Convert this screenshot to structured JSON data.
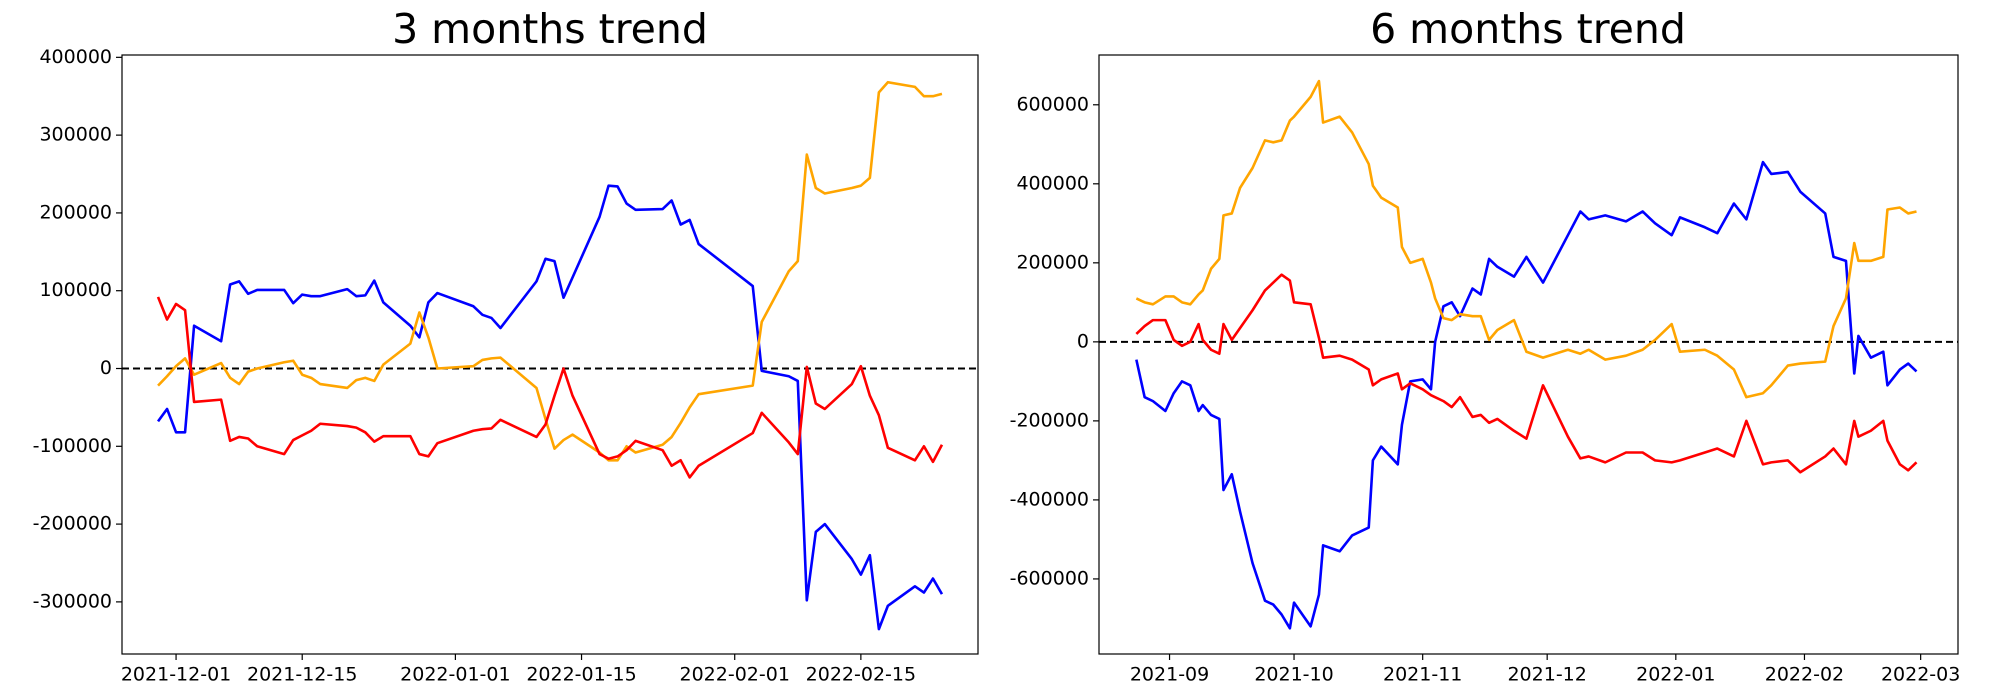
{
  "chart_data": [
    {
      "type": "line",
      "title": "3 months trend",
      "x": [
        "2021-11-29",
        "2021-11-30",
        "2021-12-01",
        "2021-12-02",
        "2021-12-03",
        "2021-12-06",
        "2021-12-07",
        "2021-12-08",
        "2021-12-09",
        "2021-12-10",
        "2021-12-13",
        "2021-12-14",
        "2021-12-15",
        "2021-12-16",
        "2021-12-17",
        "2021-12-20",
        "2021-12-21",
        "2021-12-22",
        "2021-12-23",
        "2021-12-24",
        "2021-12-27",
        "2021-12-28",
        "2021-12-29",
        "2021-12-30",
        "2022-01-03",
        "2022-01-04",
        "2022-01-05",
        "2022-01-06",
        "2022-01-10",
        "2022-01-11",
        "2022-01-12",
        "2022-01-13",
        "2022-01-14",
        "2022-01-17",
        "2022-01-18",
        "2022-01-19",
        "2022-01-20",
        "2022-01-21",
        "2022-01-24",
        "2022-01-25",
        "2022-01-26",
        "2022-01-27",
        "2022-01-28",
        "2022-02-03",
        "2022-02-04",
        "2022-02-07",
        "2022-02-08",
        "2022-02-09",
        "2022-02-10",
        "2022-02-11",
        "2022-02-14",
        "2022-02-15",
        "2022-02-16",
        "2022-02-17",
        "2022-02-18",
        "2022-02-21",
        "2022-02-22",
        "2022-02-23",
        "2022-02-24"
      ],
      "series": [
        {
          "color": "#0000ff",
          "values": [
            -68000,
            -52000,
            -82000,
            -82000,
            55000,
            35000,
            108000,
            112000,
            96000,
            101000,
            101000,
            84000,
            95000,
            93000,
            93000,
            102000,
            93000,
            94000,
            113000,
            85000,
            55000,
            40000,
            85000,
            97000,
            80000,
            69000,
            65000,
            52000,
            112000,
            141000,
            138000,
            91000,
            117000,
            195000,
            235000,
            234000,
            212000,
            204000,
            205000,
            216000,
            185000,
            191000,
            160000,
            106000,
            -3000,
            -10000,
            -16000,
            -298000,
            -210000,
            -200000,
            -245000,
            -265000,
            -240000,
            -335000,
            -305000,
            -280000,
            -288000,
            -270000,
            -290000
          ]
        },
        {
          "color": "#ffa500",
          "values": [
            -22000,
            -10000,
            3000,
            13000,
            -8000,
            7000,
            -12000,
            -20000,
            -4000,
            0,
            8000,
            10000,
            -8000,
            -12000,
            -20000,
            -25000,
            -15000,
            -12000,
            -16000,
            5000,
            32000,
            72000,
            40000,
            0,
            3000,
            11000,
            13000,
            14000,
            -25000,
            -65000,
            -103000,
            -92000,
            -85000,
            -108000,
            -118000,
            -118000,
            -100000,
            -108000,
            -98000,
            -88000,
            -70000,
            -50000,
            -33000,
            -22000,
            60000,
            125000,
            138000,
            275000,
            232000,
            225000,
            232000,
            235000,
            245000,
            355000,
            368000,
            362000,
            350000,
            350000,
            353000
          ]
        },
        {
          "color": "#ff0000",
          "values": [
            92000,
            63000,
            83000,
            75000,
            -43000,
            -40000,
            -93000,
            -88000,
            -90000,
            -100000,
            -110000,
            -92000,
            -86000,
            -80000,
            -71000,
            -74000,
            -76000,
            -82000,
            -94000,
            -87000,
            -87000,
            -110000,
            -113000,
            -96000,
            -80000,
            -78000,
            -77000,
            -66000,
            -88000,
            -72000,
            -35000,
            0,
            -35000,
            -110000,
            -116000,
            -113000,
            -105000,
            -93000,
            -105000,
            -125000,
            -118000,
            -140000,
            -125000,
            -83000,
            -57000,
            -95000,
            -110000,
            2000,
            -45000,
            -52000,
            -20000,
            3000,
            -35000,
            -60000,
            -102000,
            -118000,
            -100000,
            -120000,
            -98000
          ]
        }
      ],
      "xlim": [
        "2021-11-25",
        "2022-02-28"
      ],
      "xticks": [
        "2021-12-01",
        "2021-12-15",
        "2022-01-01",
        "2022-01-15",
        "2022-02-01",
        "2022-02-15"
      ],
      "ylim": [
        -367000,
        403000
      ],
      "yticks": [
        -300000,
        -200000,
        -100000,
        0,
        100000,
        200000,
        300000,
        400000
      ],
      "hline": 0
    },
    {
      "type": "line",
      "title": "6 months trend",
      "x": [
        "2021-08-24",
        "2021-08-26",
        "2021-08-28",
        "2021-08-31",
        "2021-09-02",
        "2021-09-04",
        "2021-09-06",
        "2021-09-08",
        "2021-09-09",
        "2021-09-11",
        "2021-09-13",
        "2021-09-14",
        "2021-09-16",
        "2021-09-18",
        "2021-09-21",
        "2021-09-24",
        "2021-09-26",
        "2021-09-28",
        "2021-09-30",
        "2021-10-01",
        "2021-10-05",
        "2021-10-07",
        "2021-10-08",
        "2021-10-12",
        "2021-10-15",
        "2021-10-19",
        "2021-10-20",
        "2021-10-22",
        "2021-10-26",
        "2021-10-27",
        "2021-10-29",
        "2021-11-01",
        "2021-11-03",
        "2021-11-04",
        "2021-11-06",
        "2021-11-08",
        "2021-11-10",
        "2021-11-13",
        "2021-11-15",
        "2021-11-17",
        "2021-11-19",
        "2021-11-23",
        "2021-11-26",
        "2021-11-30",
        "2021-12-06",
        "2021-12-09",
        "2021-12-11",
        "2021-12-15",
        "2021-12-20",
        "2021-12-24",
        "2021-12-27",
        "2021-12-31",
        "2022-01-02",
        "2022-01-08",
        "2022-01-11",
        "2022-01-15",
        "2022-01-18",
        "2022-01-22",
        "2022-01-24",
        "2022-01-28",
        "2022-01-31",
        "2022-02-06",
        "2022-02-08",
        "2022-02-11",
        "2022-02-13",
        "2022-02-14",
        "2022-02-17",
        "2022-02-20",
        "2022-02-21",
        "2022-02-24",
        "2022-02-26",
        "2022-02-28"
      ],
      "series": [
        {
          "color": "#0000ff",
          "values": [
            -45000,
            -140000,
            -150000,
            -175000,
            -130000,
            -100000,
            -110000,
            -175000,
            -160000,
            -185000,
            -195000,
            -375000,
            -335000,
            -430000,
            -560000,
            -655000,
            -665000,
            -690000,
            -725000,
            -660000,
            -720000,
            -640000,
            -515000,
            -530000,
            -490000,
            -470000,
            -300000,
            -265000,
            -310000,
            -210000,
            -100000,
            -95000,
            -120000,
            0,
            90000,
            100000,
            65000,
            135000,
            120000,
            210000,
            190000,
            165000,
            215000,
            150000,
            270000,
            330000,
            310000,
            320000,
            305000,
            330000,
            300000,
            270000,
            315000,
            290000,
            275000,
            350000,
            310000,
            455000,
            425000,
            430000,
            380000,
            325000,
            215000,
            205000,
            -80000,
            15000,
            -40000,
            -25000,
            -110000,
            -70000,
            -55000,
            -75000
          ]
        },
        {
          "color": "#ffa500",
          "values": [
            110000,
            100000,
            95000,
            115000,
            115000,
            100000,
            95000,
            120000,
            130000,
            185000,
            210000,
            320000,
            325000,
            390000,
            440000,
            510000,
            505000,
            510000,
            560000,
            570000,
            620000,
            660000,
            555000,
            570000,
            530000,
            450000,
            395000,
            365000,
            340000,
            240000,
            200000,
            210000,
            150000,
            110000,
            60000,
            55000,
            70000,
            65000,
            65000,
            5000,
            30000,
            55000,
            -25000,
            -40000,
            -20000,
            -30000,
            -20000,
            -45000,
            -35000,
            -20000,
            5000,
            45000,
            -25000,
            -20000,
            -35000,
            -70000,
            -140000,
            -130000,
            -110000,
            -60000,
            -55000,
            -50000,
            40000,
            110000,
            250000,
            205000,
            205000,
            215000,
            335000,
            340000,
            325000,
            330000
          ]
        },
        {
          "color": "#ff0000",
          "values": [
            20000,
            40000,
            55000,
            55000,
            5000,
            -10000,
            0,
            45000,
            5000,
            -20000,
            -30000,
            45000,
            5000,
            35000,
            80000,
            130000,
            150000,
            170000,
            155000,
            100000,
            95000,
            10000,
            -40000,
            -35000,
            -45000,
            -70000,
            -110000,
            -95000,
            -80000,
            -120000,
            -105000,
            -120000,
            -135000,
            -140000,
            -150000,
            -165000,
            -140000,
            -190000,
            -185000,
            -205000,
            -195000,
            -225000,
            -245000,
            -110000,
            -240000,
            -295000,
            -290000,
            -305000,
            -280000,
            -280000,
            -300000,
            -305000,
            -300000,
            -280000,
            -270000,
            -290000,
            -200000,
            -310000,
            -305000,
            -300000,
            -330000,
            -290000,
            -270000,
            -310000,
            -200000,
            -240000,
            -225000,
            -200000,
            -250000,
            -310000,
            -325000,
            -305000
          ]
        }
      ],
      "xlim": [
        "2021-08-15",
        "2022-03-10"
      ],
      "xticks": [
        "2021-09",
        "2021-10",
        "2021-11",
        "2021-12",
        "2022-01",
        "2022-02",
        "2022-03"
      ],
      "ylim": [
        -790000,
        726000
      ],
      "yticks": [
        -600000,
        -400000,
        -200000,
        0,
        200000,
        400000,
        600000
      ],
      "hline": 0
    }
  ]
}
